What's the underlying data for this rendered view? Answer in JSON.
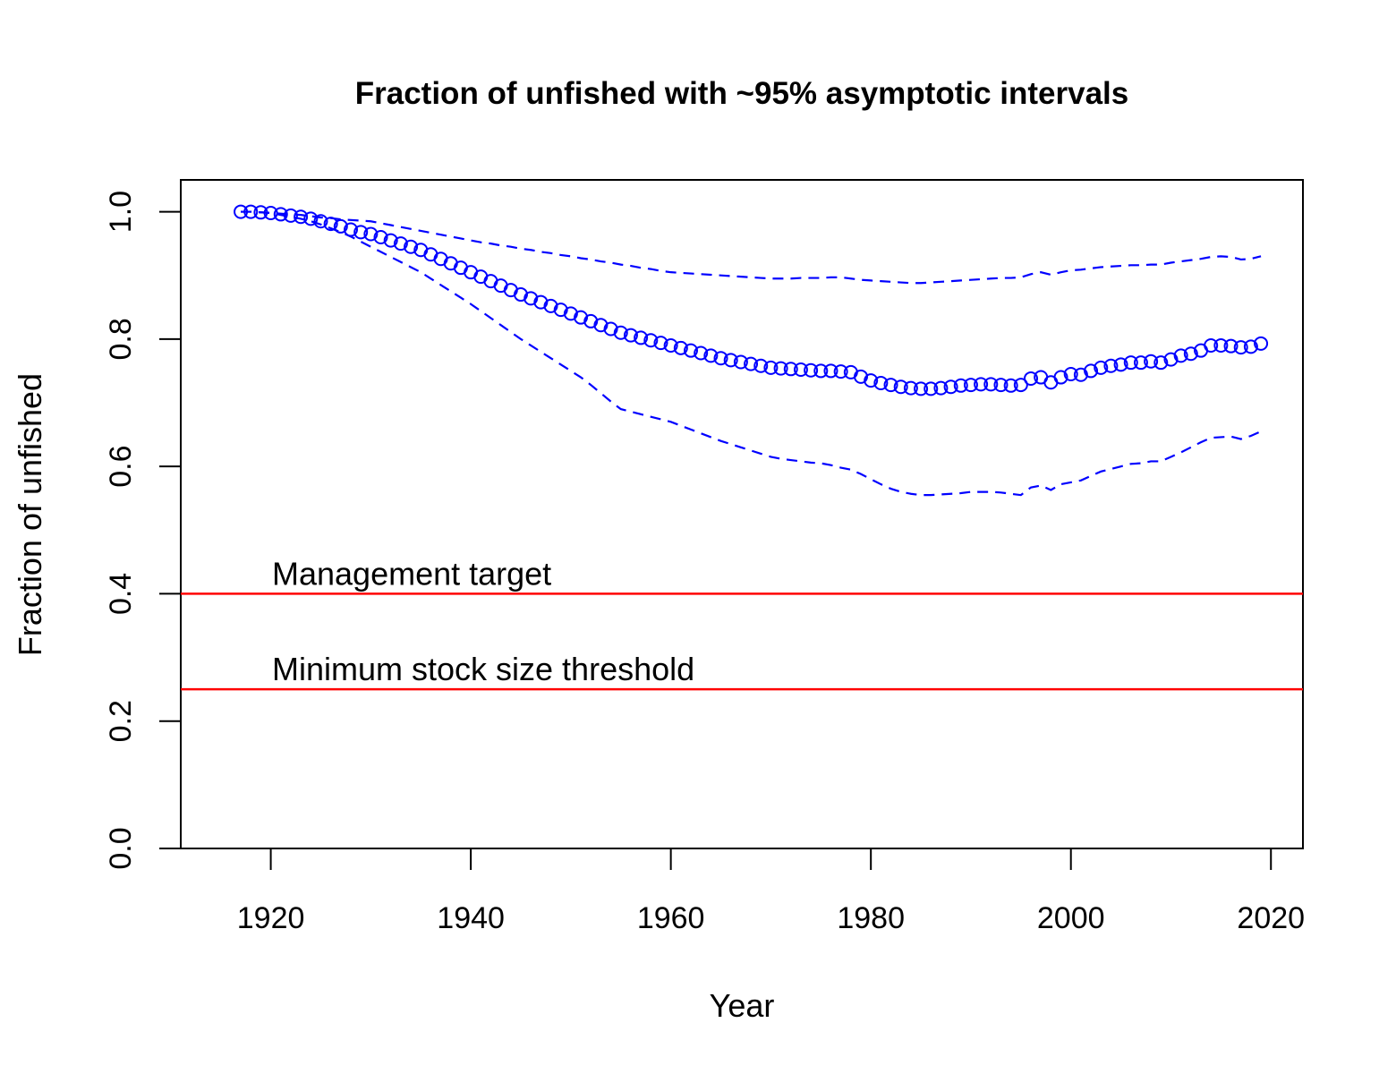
{
  "chart_data": {
    "type": "line",
    "title": "Fraction of unfished with ~95% asymptotic intervals",
    "xlabel": "Year",
    "ylabel": "Fraction of unfished",
    "x": [
      1917,
      1918,
      1919,
      1920,
      1921,
      1922,
      1923,
      1924,
      1925,
      1926,
      1927,
      1928,
      1929,
      1930,
      1931,
      1932,
      1933,
      1934,
      1935,
      1936,
      1937,
      1938,
      1939,
      1940,
      1941,
      1942,
      1943,
      1944,
      1945,
      1946,
      1947,
      1948,
      1949,
      1950,
      1951,
      1952,
      1953,
      1954,
      1955,
      1956,
      1957,
      1958,
      1959,
      1960,
      1961,
      1962,
      1963,
      1964,
      1965,
      1966,
      1967,
      1968,
      1969,
      1970,
      1971,
      1972,
      1973,
      1974,
      1975,
      1976,
      1977,
      1978,
      1979,
      1980,
      1981,
      1982,
      1983,
      1984,
      1985,
      1986,
      1987,
      1988,
      1989,
      1990,
      1991,
      1992,
      1993,
      1994,
      1995,
      1996,
      1997,
      1998,
      1999,
      2000,
      2001,
      2002,
      2003,
      2004,
      2005,
      2006,
      2007,
      2008,
      2009,
      2010,
      2011,
      2012,
      2013,
      2014,
      2015,
      2016,
      2017,
      2018,
      2019
    ],
    "series": [
      {
        "color": "#0000ff",
        "style": "points",
        "values": [
          1.0,
          1.0,
          0.999,
          0.998,
          0.996,
          0.994,
          0.992,
          0.989,
          0.985,
          0.981,
          0.977,
          0.972,
          0.968,
          0.965,
          0.96,
          0.955,
          0.95,
          0.945,
          0.94,
          0.933,
          0.926,
          0.919,
          0.912,
          0.905,
          0.898,
          0.891,
          0.884,
          0.877,
          0.87,
          0.864,
          0.858,
          0.852,
          0.846,
          0.84,
          0.834,
          0.828,
          0.822,
          0.816,
          0.81,
          0.806,
          0.802,
          0.798,
          0.794,
          0.79,
          0.786,
          0.782,
          0.778,
          0.774,
          0.77,
          0.767,
          0.764,
          0.761,
          0.758,
          0.755,
          0.754,
          0.753,
          0.752,
          0.751,
          0.75,
          0.75,
          0.749,
          0.748,
          0.741,
          0.735,
          0.731,
          0.728,
          0.725,
          0.723,
          0.722,
          0.722,
          0.723,
          0.725,
          0.727,
          0.728,
          0.729,
          0.729,
          0.728,
          0.727,
          0.728,
          0.738,
          0.74,
          0.732,
          0.74,
          0.745,
          0.744,
          0.75,
          0.755,
          0.758,
          0.76,
          0.763,
          0.763,
          0.765,
          0.763,
          0.768,
          0.774,
          0.777,
          0.782,
          0.79,
          0.79,
          0.789,
          0.787,
          0.788,
          0.793
        ]
      },
      {
        "color": "#0000ff",
        "style": "dashed",
        "values": [
          1.0,
          1.0,
          0.999,
          0.998,
          0.997,
          0.996,
          0.995,
          0.993,
          0.991,
          0.99,
          0.988,
          0.987,
          0.986,
          0.985,
          0.982,
          0.979,
          0.976,
          0.973,
          0.97,
          0.967,
          0.964,
          0.961,
          0.958,
          0.955,
          0.952,
          0.95,
          0.947,
          0.945,
          0.942,
          0.94,
          0.937,
          0.935,
          0.932,
          0.93,
          0.927,
          0.925,
          0.922,
          0.92,
          0.917,
          0.915,
          0.912,
          0.91,
          0.907,
          0.905,
          0.904,
          0.903,
          0.902,
          0.901,
          0.9,
          0.899,
          0.898,
          0.897,
          0.896,
          0.895,
          0.895,
          0.895,
          0.896,
          0.896,
          0.896,
          0.897,
          0.897,
          0.895,
          0.893,
          0.892,
          0.891,
          0.89,
          0.889,
          0.888,
          0.888,
          0.889,
          0.89,
          0.891,
          0.892,
          0.893,
          0.894,
          0.895,
          0.896,
          0.896,
          0.897,
          0.902,
          0.905,
          0.901,
          0.905,
          0.908,
          0.909,
          0.911,
          0.913,
          0.914,
          0.915,
          0.916,
          0.916,
          0.917,
          0.917,
          0.92,
          0.922,
          0.924,
          0.926,
          0.929,
          0.93,
          0.929,
          0.925,
          0.926,
          0.93
        ]
      },
      {
        "color": "#0000ff",
        "style": "dashed",
        "values": [
          1.0,
          1.0,
          0.999,
          0.998,
          0.995,
          0.992,
          0.989,
          0.985,
          0.98,
          0.974,
          0.968,
          0.961,
          0.953,
          0.945,
          0.937,
          0.929,
          0.921,
          0.913,
          0.905,
          0.895,
          0.885,
          0.875,
          0.865,
          0.855,
          0.844,
          0.833,
          0.822,
          0.811,
          0.8,
          0.79,
          0.78,
          0.77,
          0.76,
          0.75,
          0.74,
          0.728,
          0.715,
          0.702,
          0.69,
          0.686,
          0.682,
          0.678,
          0.674,
          0.67,
          0.664,
          0.658,
          0.652,
          0.646,
          0.64,
          0.635,
          0.63,
          0.625,
          0.62,
          0.615,
          0.612,
          0.61,
          0.608,
          0.606,
          0.605,
          0.602,
          0.598,
          0.595,
          0.588,
          0.58,
          0.572,
          0.565,
          0.56,
          0.557,
          0.555,
          0.555,
          0.556,
          0.557,
          0.558,
          0.56,
          0.56,
          0.56,
          0.559,
          0.557,
          0.555,
          0.567,
          0.57,
          0.563,
          0.572,
          0.575,
          0.578,
          0.585,
          0.592,
          0.596,
          0.6,
          0.604,
          0.605,
          0.608,
          0.608,
          0.615,
          0.622,
          0.63,
          0.638,
          0.645,
          0.646,
          0.647,
          0.643,
          0.648,
          0.655
        ]
      }
    ],
    "hlines": [
      {
        "value": 0.4,
        "label": "Management target",
        "color": "#ff0000"
      },
      {
        "value": 0.25,
        "label": "Minimum stock size threshold",
        "color": "#ff0000"
      }
    ],
    "xlim": [
      1911,
      2023.2
    ],
    "ylim": [
      0,
      1.05
    ],
    "xticks": [
      1920,
      1940,
      1960,
      1980,
      2000,
      2020
    ],
    "yticks": [
      {
        "value": 0,
        "label": "0.0"
      },
      0.2,
      0.4,
      0.6,
      0.8,
      {
        "value": 1,
        "label": "1.0"
      }
    ],
    "grid": false
  }
}
